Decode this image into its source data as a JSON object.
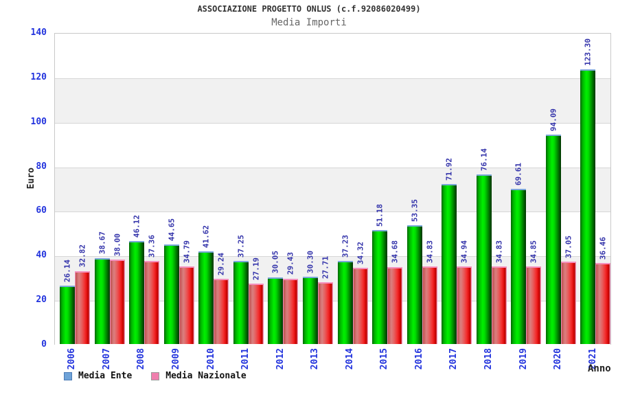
{
  "header": {
    "title": "ASSOCIAZIONE PROGETTO ONLUS (c.f.92086020499)",
    "subtitle": "Media Importi"
  },
  "chart_data": {
    "type": "bar",
    "title": "ASSOCIAZIONE PROGETTO ONLUS (c.f.92086020499)",
    "subtitle": "Media Importi",
    "xlabel": "Anno",
    "ylabel": "Euro",
    "ylim": [
      0,
      140
    ],
    "yticks": [
      0,
      20,
      40,
      60,
      80,
      100,
      120,
      140
    ],
    "grid": "alternating horizontal bands every 20 units with light gridlines",
    "legend_position": "bottom-left",
    "value_labels": "each bar labeled with value, 2 decimals, rotated 90deg, blue",
    "categories": [
      "2006",
      "2007",
      "2008",
      "2009",
      "2010",
      "2011",
      "2012",
      "2013",
      "2014",
      "2015",
      "2016",
      "2017",
      "2018",
      "2019",
      "2020",
      "2021"
    ],
    "series": [
      {
        "name": "Media Ente",
        "bar_color": "green gradient",
        "legend_swatch_color": "#6fa3d8",
        "values": [
          26.14,
          38.67,
          46.12,
          44.65,
          41.62,
          37.25,
          30.05,
          30.3,
          37.23,
          51.18,
          53.35,
          71.92,
          76.14,
          69.61,
          94.09,
          123.3
        ]
      },
      {
        "name": "Media Nazionale",
        "bar_color": "red gradient",
        "legend_swatch_color": "#f07fae",
        "values": [
          32.82,
          38.0,
          37.36,
          34.79,
          29.24,
          27.19,
          29.43,
          27.71,
          34.32,
          34.68,
          34.83,
          34.94,
          34.83,
          34.85,
          37.05,
          36.46
        ]
      }
    ]
  },
  "colors": {
    "title_text": "#333333",
    "subtitle_text": "#666666",
    "axis_tick_text": "#2233dd",
    "value_label_text": "#3333aa",
    "band_white": "#ffffff",
    "band_gray": "#f1f1f1",
    "gridline": "#d6d6d6",
    "plot_border": "#c8c8c8"
  }
}
